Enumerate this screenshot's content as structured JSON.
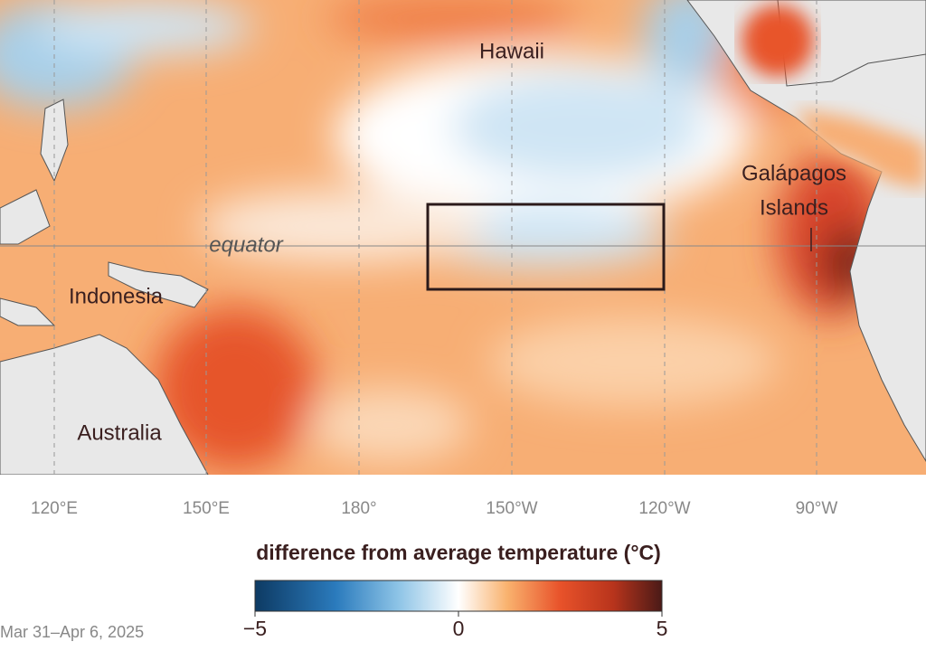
{
  "map": {
    "place_labels": {
      "hawaii": "Hawaii",
      "galapagos": [
        "Galápagos",
        "Islands"
      ],
      "equator": "equator",
      "indonesia": "Indonesia",
      "australia": "Australia"
    },
    "longitudes": [
      "120°E",
      "150°E",
      "180°",
      "150°W",
      "120°W",
      "90°W"
    ],
    "legend": {
      "title": "difference from average temperature (°C)",
      "lim": [
        -5,
        5
      ],
      "ticks": [
        {
          "value": -5,
          "label": "−5"
        },
        0,
        5
      ]
    },
    "date": "Mar 31–Apr 6, 2025"
  }
}
